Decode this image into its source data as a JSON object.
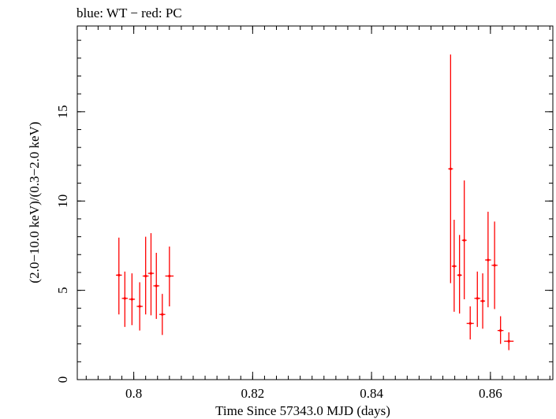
{
  "chart_data": {
    "type": "scatter",
    "title": "blue: WT − red: PC",
    "xlabel": "Time Since 57343.0 MJD (days)",
    "ylabel": "(2.0−10.0 keV)/(0.3−2.0 keV)",
    "xlim": [
      0.7905,
      0.8705
    ],
    "ylim": [
      0,
      19.8
    ],
    "x_ticks": [
      {
        "value": 0.8,
        "label": "0.8"
      },
      {
        "value": 0.82,
        "label": "0.82"
      },
      {
        "value": 0.84,
        "label": "0.84"
      },
      {
        "value": 0.86,
        "label": "0.86"
      }
    ],
    "y_ticks": [
      {
        "value": 0,
        "label": "0"
      },
      {
        "value": 5,
        "label": "5"
      },
      {
        "value": 10,
        "label": "10"
      },
      {
        "value": 15,
        "label": "15"
      }
    ],
    "grid": false,
    "series": [
      {
        "name": "PC",
        "color": "#ff0000",
        "points": [
          {
            "x": 0.7975,
            "xerr": 0.0005,
            "y": 5.85,
            "ylo": 3.65,
            "yhi": 7.95
          },
          {
            "x": 0.7985,
            "xerr": 0.0005,
            "y": 4.55,
            "ylo": 2.95,
            "yhi": 6.05
          },
          {
            "x": 0.7997,
            "xerr": 0.0005,
            "y": 4.5,
            "ylo": 3.05,
            "yhi": 5.95
          },
          {
            "x": 0.801,
            "xerr": 0.0005,
            "y": 4.1,
            "ylo": 2.75,
            "yhi": 5.45
          },
          {
            "x": 0.802,
            "xerr": 0.0005,
            "y": 5.8,
            "ylo": 3.65,
            "yhi": 8.0
          },
          {
            "x": 0.8029,
            "xerr": 0.0005,
            "y": 5.95,
            "ylo": 3.6,
            "yhi": 8.2
          },
          {
            "x": 0.8038,
            "xerr": 0.0005,
            "y": 5.25,
            "ylo": 3.4,
            "yhi": 7.1
          },
          {
            "x": 0.8048,
            "xerr": 0.0005,
            "y": 3.65,
            "ylo": 2.5,
            "yhi": 4.8
          },
          {
            "x": 0.806,
            "xerr": 0.0007,
            "y": 5.8,
            "ylo": 4.1,
            "yhi": 7.45
          },
          {
            "x": 0.8533,
            "xerr": 0.0004,
            "y": 11.8,
            "ylo": 5.4,
            "yhi": 18.2
          },
          {
            "x": 0.8539,
            "xerr": 0.0004,
            "y": 6.35,
            "ylo": 3.8,
            "yhi": 8.95
          },
          {
            "x": 0.8548,
            "xerr": 0.0004,
            "y": 5.85,
            "ylo": 3.7,
            "yhi": 8.1
          },
          {
            "x": 0.8556,
            "xerr": 0.0004,
            "y": 7.8,
            "ylo": 4.5,
            "yhi": 11.15
          },
          {
            "x": 0.8566,
            "xerr": 0.0006,
            "y": 3.15,
            "ylo": 2.25,
            "yhi": 4.1
          },
          {
            "x": 0.8578,
            "xerr": 0.0005,
            "y": 4.55,
            "ylo": 2.95,
            "yhi": 6.05
          },
          {
            "x": 0.8587,
            "xerr": 0.0004,
            "y": 4.4,
            "ylo": 2.85,
            "yhi": 5.95
          },
          {
            "x": 0.8596,
            "xerr": 0.0005,
            "y": 6.7,
            "ylo": 4.05,
            "yhi": 9.4
          },
          {
            "x": 0.8607,
            "xerr": 0.0005,
            "y": 6.4,
            "ylo": 3.95,
            "yhi": 8.85
          },
          {
            "x": 0.8617,
            "xerr": 0.0005,
            "y": 2.75,
            "ylo": 2.0,
            "yhi": 3.55
          },
          {
            "x": 0.8631,
            "xerr": 0.0008,
            "y": 2.15,
            "ylo": 1.65,
            "yhi": 2.65
          }
        ]
      }
    ]
  }
}
